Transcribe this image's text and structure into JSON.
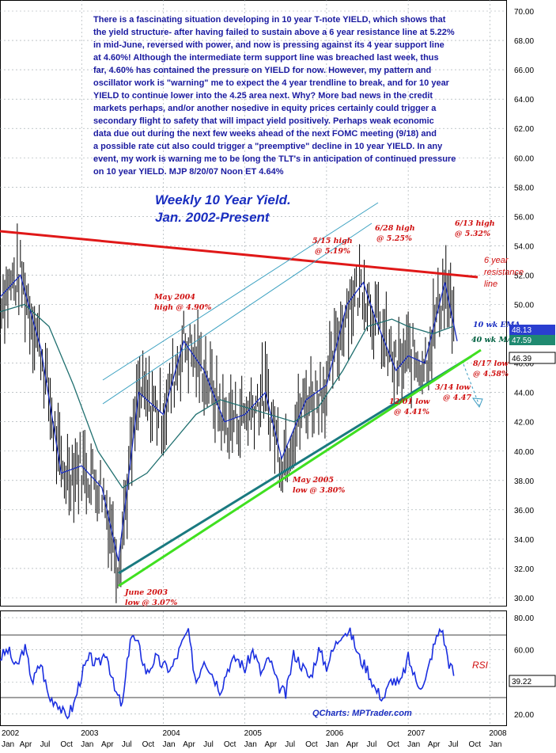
{
  "chart_data": {
    "type": "line",
    "title": "Weekly 10 Year Yield.",
    "subtitle": "Jan. 2002-Present",
    "commentary": [
      "There is a fascinating situation developing in 10 year T-note YIELD, which shows that",
      "the yield structure- after having failed to sustain above a 6 year resistance line at 5.22%",
      "in mid-June, reversed with power, and now is pressing against its 4 year support line",
      "at 4.60%!  Although the intermediate term support line was breached last week, thus",
      "far, 4.60% has contained the pressure on YIELD for now.  However, my pattern and",
      "oscillator work is \"warning\" me to expect the 4 year trendline to break, and for 10 year",
      "YIELD to continue lower into the 4.25 area next. Why? More bad news in the credit",
      "markets perhaps, and/or another nosedive in equity prices certainly could trigger a",
      "secondary flight to safety that will impact yield positively. Perhaps weak economic",
      "data due out during the next few weeks ahead of the next FOMC meeting (9/18) and",
      "a possible rate cut also could trigger a \"preemptive\" decline in 10 year YIELD. In any",
      "event, my work is warning me to be long the TLT's in anticipation of continued pressure",
      "on 10 year YIELD. MJP 8/20/07 Noon ET 4.64%"
    ],
    "y_ticks": [
      "70.00",
      "68.00",
      "66.00",
      "64.00",
      "62.00",
      "60.00",
      "58.00",
      "56.00",
      "54.00",
      "52.00",
      "50.00",
      "48.00",
      "46.00",
      "44.00",
      "42.00",
      "40.00",
      "38.00",
      "36.00",
      "34.00",
      "32.00",
      "30.00"
    ],
    "ylim": [
      29.5,
      71
    ],
    "x_labels": [
      "2002",
      "Jan",
      "Apr",
      "Jul",
      "Oct",
      "2003",
      "Jan",
      "Apr",
      "Jul",
      "Oct",
      "2004",
      "Jan",
      "Apr",
      "Jul",
      "Oct",
      "2005",
      "Jan",
      "Apr",
      "Jul",
      "Oct",
      "2006",
      "Jan",
      "Apr",
      "Jul",
      "Oct",
      "2007",
      "Jan",
      "Apr",
      "Jul",
      "Oct",
      "2008",
      "Jan"
    ],
    "series": [
      {
        "name": "10 wk EMA",
        "color": "#1a2ec0",
        "x": [
          2002.0,
          2002.25,
          2002.5,
          2002.75,
          2003.0,
          2003.25,
          2003.45,
          2003.7,
          2004.0,
          2004.25,
          2004.5,
          2004.75,
          2005.0,
          2005.25,
          2005.45,
          2005.75,
          2006.0,
          2006.25,
          2006.45,
          2006.6,
          2006.85,
          2007.0,
          2007.2,
          2007.45,
          2007.6
        ],
        "values": [
          50.5,
          52.0,
          47.0,
          38.5,
          39.0,
          37.5,
          32.5,
          44.0,
          42.5,
          47.5,
          45.5,
          42.0,
          42.5,
          44.0,
          39.5,
          43.5,
          44.5,
          50.0,
          51.5,
          49.0,
          45.5,
          46.5,
          46.0,
          51.5,
          47.5
        ]
      },
      {
        "name": "40 wk MA",
        "color": "#1f6f6f",
        "x": [
          2002.0,
          2002.3,
          2002.6,
          2002.9,
          2003.2,
          2003.5,
          2003.8,
          2004.1,
          2004.4,
          2004.7,
          2005.0,
          2005.3,
          2005.6,
          2005.9,
          2006.2,
          2006.5,
          2006.8,
          2007.0,
          2007.3,
          2007.55
        ],
        "values": [
          49.5,
          50.0,
          48.5,
          44.5,
          40.0,
          37.5,
          38.5,
          40.5,
          42.5,
          43.5,
          43.0,
          42.5,
          42.0,
          43.0,
          45.5,
          48.5,
          49.0,
          48.5,
          48.0,
          48.5
        ]
      }
    ],
    "price_legend": {
      "value": "46.39"
    },
    "ema_legend": {
      "label": "10 wk EMA",
      "value": "48.13"
    },
    "ma_legend": {
      "label": "40 wk MA",
      "value": "47.59"
    },
    "resistance_label": [
      "6 year",
      "resistance",
      "line"
    ],
    "annotations": [
      {
        "text": [
          "June 2003",
          "low @ 3.07%"
        ],
        "color": "red"
      },
      {
        "text": [
          "May 2004",
          "high @ 4.90%"
        ],
        "color": "red"
      },
      {
        "text": [
          "May 2005",
          "low @ 3.80%"
        ],
        "color": "red"
      },
      {
        "text": [
          "5/15 high",
          "@ 5.19%"
        ],
        "color": "red"
      },
      {
        "text": [
          "6/28 high",
          "@ 5.25%"
        ],
        "color": "red"
      },
      {
        "text": [
          "12/01 low",
          "@ 4.41%"
        ],
        "color": "red"
      },
      {
        "text": [
          "3/14 low",
          "@ 4.47"
        ],
        "color": "red"
      },
      {
        "text": [
          "6/13 high",
          "@ 5.32%"
        ],
        "color": "red"
      },
      {
        "text": [
          "8/17 low",
          "@ 4.58%"
        ],
        "color": "red"
      }
    ],
    "rsi": {
      "name": "RSI",
      "y_ticks": [
        "80.00",
        "60.00",
        "40.00",
        "20.00"
      ],
      "ylim": [
        15,
        82
      ],
      "current_value": "39.22",
      "overbought": 70,
      "oversold": 30,
      "x": [
        2002.0,
        2002.1,
        2002.2,
        2002.3,
        2002.4,
        2002.5,
        2002.6,
        2002.7,
        2002.8,
        2002.9,
        2003.0,
        2003.1,
        2003.2,
        2003.3,
        2003.4,
        2003.5,
        2003.6,
        2003.7,
        2003.8,
        2003.9,
        2004.0,
        2004.1,
        2004.2,
        2004.3,
        2004.4,
        2004.5,
        2004.6,
        2004.7,
        2004.8,
        2004.9,
        2005.0,
        2005.1,
        2005.2,
        2005.3,
        2005.4,
        2005.5,
        2005.6,
        2005.7,
        2005.8,
        2005.9,
        2006.0,
        2006.1,
        2006.2,
        2006.3,
        2006.4,
        2006.5,
        2006.6,
        2006.7,
        2006.8,
        2006.9,
        2007.0,
        2007.1,
        2007.2,
        2007.3,
        2007.4,
        2007.5,
        2007.6
      ],
      "values": [
        55,
        60,
        48,
        62,
        40,
        52,
        30,
        28,
        18,
        25,
        45,
        55,
        50,
        60,
        35,
        25,
        70,
        62,
        45,
        55,
        50,
        48,
        60,
        72,
        40,
        55,
        45,
        35,
        50,
        55,
        48,
        60,
        45,
        55,
        38,
        32,
        58,
        50,
        42,
        60,
        50,
        62,
        72,
        70,
        55,
        48,
        35,
        30,
        42,
        38,
        55,
        40,
        38,
        60,
        75,
        52,
        40
      ]
    },
    "watermark": "QCharts: MPTrader.com"
  }
}
